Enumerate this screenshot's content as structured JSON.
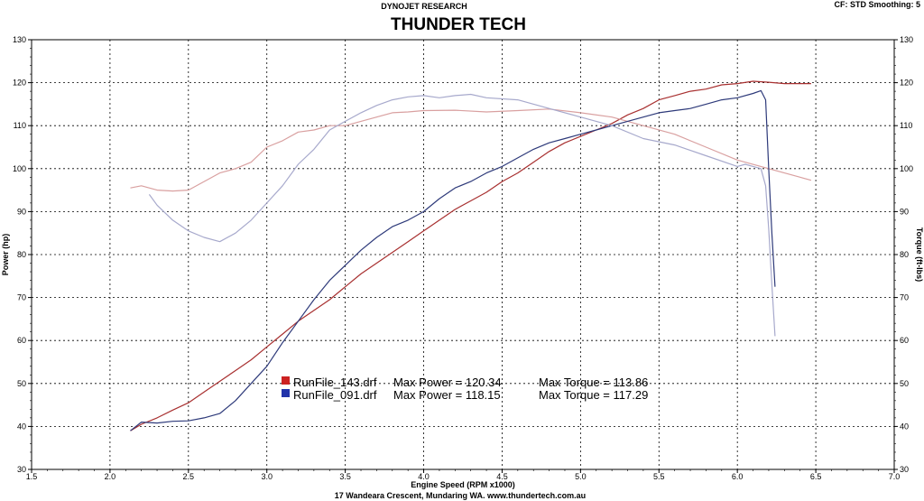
{
  "header": {
    "subtitle": "DYNOJET RESEARCH",
    "title": "THUNDER TECH",
    "settings": "CF: STD   Smoothing: 5"
  },
  "footer": {
    "address": "17 Wandeara Crescent, Mundaring WA.   www.thundertech.com.au"
  },
  "chart_data": {
    "type": "line",
    "xlabel": "Engine Speed (RPM x1000)",
    "ylabel": "Power (hp)",
    "y2label": "Torque (ft-lbs)",
    "xlim": [
      1.5,
      7.0
    ],
    "ylim": [
      30,
      130
    ],
    "y2lim": [
      30,
      130
    ],
    "xticks": [
      "1.5",
      "2.0",
      "2.5",
      "3.0",
      "3.5",
      "4.0",
      "4.5",
      "5.0",
      "5.5",
      "6.0",
      "6.5",
      "7.0"
    ],
    "yticks": [
      "30",
      "40",
      "50",
      "60",
      "70",
      "80",
      "90",
      "100",
      "110",
      "120",
      "130"
    ],
    "grid": true,
    "legend": [
      {
        "file": "RunFile_143.drf",
        "power_label": "Max Power = 120.34",
        "torque_label": "Max Torque = 113.86",
        "color": "#cc2222"
      },
      {
        "file": "RunFile_091.drf",
        "power_label": "Max Power = 118.15",
        "torque_label": "Max Torque = 117.29",
        "color": "#2233aa"
      }
    ],
    "series": [
      {
        "name": "RunFile_143.drf",
        "kind": "power",
        "color": "#a83030",
        "x": [
          2.13,
          2.2,
          2.3,
          2.4,
          2.5,
          2.6,
          2.7,
          2.8,
          2.9,
          3.0,
          3.1,
          3.2,
          3.3,
          3.4,
          3.5,
          3.6,
          3.7,
          3.8,
          3.9,
          4.0,
          4.1,
          4.2,
          4.3,
          4.4,
          4.5,
          4.6,
          4.7,
          4.8,
          4.9,
          5.0,
          5.1,
          5.2,
          5.3,
          5.4,
          5.5,
          5.6,
          5.7,
          5.8,
          5.9,
          6.0,
          6.1,
          6.2,
          6.3,
          6.4,
          6.47
        ],
        "y": [
          39,
          40.5,
          42,
          43.8,
          45.5,
          48,
          50.5,
          53,
          55.5,
          58.5,
          61.5,
          64.5,
          67,
          69.5,
          72.5,
          75.5,
          78,
          80.5,
          83,
          85.5,
          88,
          90.5,
          92.5,
          94.5,
          97,
          99,
          101.5,
          104,
          106,
          107.5,
          109,
          110.5,
          112.5,
          114,
          116,
          117,
          118,
          118.5,
          119.5,
          119.8,
          120.34,
          120.1,
          119.8,
          119.8,
          119.8
        ]
      },
      {
        "name": "RunFile_143.drf",
        "kind": "torque",
        "color": "#d9a0a0",
        "x": [
          2.13,
          2.2,
          2.3,
          2.4,
          2.5,
          2.6,
          2.7,
          2.8,
          2.9,
          3.0,
          3.1,
          3.2,
          3.3,
          3.4,
          3.5,
          3.6,
          3.7,
          3.8,
          3.9,
          4.0,
          4.2,
          4.4,
          4.6,
          4.8,
          5.0,
          5.2,
          5.4,
          5.6,
          5.8,
          6.0,
          6.2,
          6.3,
          6.4,
          6.47
        ],
        "y": [
          95.5,
          96,
          95,
          94.8,
          95,
          97,
          99,
          100,
          101.5,
          105,
          106.5,
          108.5,
          109,
          110,
          110,
          111,
          112,
          113,
          113.2,
          113.5,
          113.6,
          113.2,
          113.5,
          113.86,
          113,
          112,
          110,
          108,
          105,
          102,
          100,
          99,
          98,
          97.3
        ]
      },
      {
        "name": "RunFile_091.drf",
        "kind": "power",
        "color": "#2e3a7a",
        "x": [
          2.13,
          2.2,
          2.3,
          2.4,
          2.5,
          2.6,
          2.7,
          2.8,
          2.9,
          3.0,
          3.1,
          3.2,
          3.3,
          3.4,
          3.5,
          3.6,
          3.7,
          3.8,
          3.9,
          4.0,
          4.1,
          4.2,
          4.3,
          4.4,
          4.5,
          4.6,
          4.7,
          4.8,
          4.9,
          5.0,
          5.1,
          5.2,
          5.3,
          5.4,
          5.5,
          5.6,
          5.7,
          5.8,
          5.9,
          6.0,
          6.1,
          6.15,
          6.18,
          6.2,
          6.22,
          6.24
        ],
        "y": [
          39,
          41,
          40.8,
          41.2,
          41.3,
          42,
          43,
          46,
          50,
          54,
          59.5,
          64.5,
          69.5,
          74,
          77.5,
          81,
          84,
          86.5,
          88,
          90,
          93,
          95.5,
          97,
          99,
          100.5,
          102.5,
          104.5,
          106,
          107,
          108,
          109,
          110,
          111,
          112,
          113,
          113.5,
          114,
          115,
          116,
          116.5,
          117.5,
          118.15,
          116,
          100,
          85,
          72.5
        ]
      },
      {
        "name": "RunFile_091.drf",
        "kind": "torque",
        "color": "#a7a9cc",
        "x": [
          2.25,
          2.3,
          2.4,
          2.5,
          2.6,
          2.7,
          2.8,
          2.9,
          3.0,
          3.1,
          3.2,
          3.3,
          3.4,
          3.5,
          3.6,
          3.7,
          3.8,
          3.9,
          4.0,
          4.1,
          4.2,
          4.3,
          4.4,
          4.6,
          4.8,
          5.0,
          5.2,
          5.4,
          5.6,
          5.8,
          6.0,
          6.05,
          6.1,
          6.15,
          6.18,
          6.2,
          6.22,
          6.24
        ],
        "y": [
          94,
          91.5,
          88,
          85.5,
          84,
          83,
          85,
          88,
          92,
          96,
          101,
          104.5,
          109,
          111,
          113,
          114.7,
          116,
          116.7,
          117,
          116.5,
          117,
          117.29,
          116.5,
          116,
          114,
          112,
          110,
          107,
          105.5,
          103,
          100.5,
          101,
          100.5,
          100,
          96,
          86,
          73,
          61
        ]
      }
    ]
  }
}
